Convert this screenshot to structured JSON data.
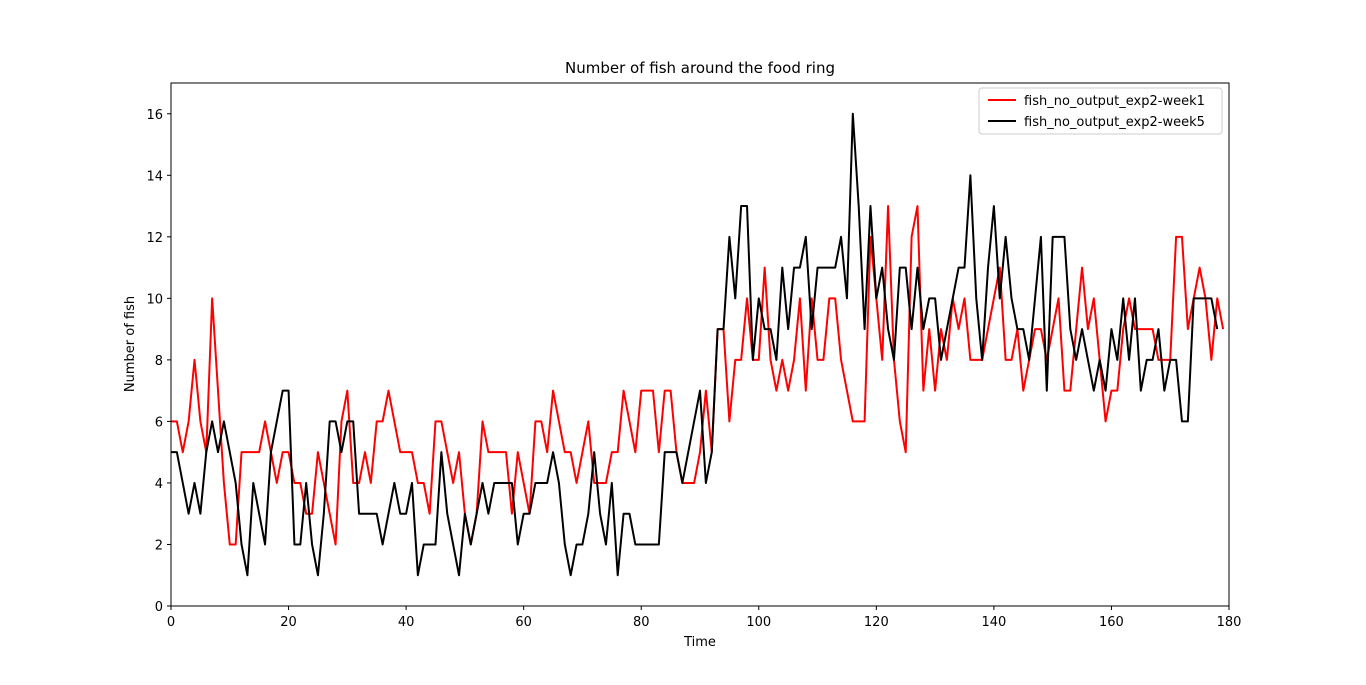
{
  "chart_data": {
    "type": "line",
    "title": "Number of fish around the food ring",
    "xlabel": "Time",
    "ylabel": "Number of fish",
    "xlim": [
      0,
      180
    ],
    "ylim": [
      0,
      17
    ],
    "xticks": [
      0,
      20,
      40,
      60,
      80,
      100,
      120,
      140,
      160,
      180
    ],
    "yticks": [
      0,
      2,
      4,
      6,
      8,
      10,
      12,
      14,
      16
    ],
    "grid": false,
    "legend_position": "top-right",
    "series": [
      {
        "name": "fish_no_output_exp2-week1",
        "color": "#ff0000",
        "values": [
          6,
          6,
          5,
          6,
          8,
          6,
          5,
          10,
          7,
          4,
          2,
          2,
          5,
          5,
          5,
          5,
          6,
          5,
          4,
          5,
          5,
          4,
          4,
          3,
          3,
          5,
          4,
          3,
          2,
          6,
          7,
          4,
          4,
          5,
          4,
          6,
          6,
          7,
          6,
          5,
          5,
          5,
          4,
          4,
          3,
          6,
          6,
          5,
          4,
          5,
          3,
          2,
          3,
          6,
          5,
          5,
          5,
          5,
          3,
          5,
          4,
          3,
          6,
          6,
          5,
          7,
          6,
          5,
          5,
          4,
          5,
          6,
          4,
          4,
          4,
          5,
          5,
          7,
          6,
          5,
          7,
          7,
          7,
          5,
          7,
          7,
          5,
          4,
          4,
          4,
          5,
          7,
          5,
          9,
          9,
          6,
          8,
          8,
          10,
          8,
          8,
          11,
          8,
          7,
          8,
          7,
          8,
          10,
          7,
          10,
          8,
          8,
          10,
          10,
          8,
          7,
          6,
          6,
          6,
          12,
          10,
          8,
          13,
          8,
          6,
          5,
          12,
          13,
          7,
          9,
          7,
          9,
          8,
          10,
          9,
          10,
          8,
          8,
          8,
          9,
          10,
          11,
          8,
          8,
          9,
          7,
          8,
          9,
          9,
          8,
          9,
          10,
          7,
          7,
          9,
          11,
          9,
          10,
          8,
          6,
          7,
          7,
          9,
          10,
          9,
          9,
          9,
          9,
          8,
          8,
          8,
          12,
          12,
          9,
          10,
          11,
          10,
          8,
          10,
          9
        ]
      },
      {
        "name": "fish_no_output_exp2-week5",
        "color": "#000000",
        "values": [
          5,
          5,
          4,
          3,
          4,
          3,
          5,
          6,
          5,
          6,
          5,
          4,
          2,
          1,
          4,
          3,
          2,
          5,
          6,
          7,
          7,
          2,
          2,
          4,
          2,
          1,
          3,
          6,
          6,
          5,
          6,
          6,
          3,
          3,
          3,
          3,
          2,
          3,
          4,
          3,
          3,
          4,
          1,
          2,
          2,
          2,
          5,
          3,
          2,
          1,
          3,
          2,
          3,
          4,
          3,
          4,
          4,
          4,
          4,
          2,
          3,
          3,
          4,
          4,
          4,
          5,
          4,
          2,
          1,
          2,
          2,
          3,
          5,
          3,
          2,
          4,
          1,
          3,
          3,
          2,
          2,
          2,
          2,
          2,
          5,
          5,
          5,
          4,
          5,
          6,
          7,
          4,
          5,
          9,
          9,
          12,
          10,
          13,
          13,
          8,
          10,
          9,
          9,
          8,
          11,
          9,
          11,
          11,
          12,
          9,
          11,
          11,
          11,
          11,
          12,
          10,
          16,
          13,
          9,
          13,
          10,
          11,
          9,
          8,
          11,
          11,
          9,
          11,
          9,
          10,
          10,
          8,
          9,
          10,
          11,
          11,
          14,
          10,
          8,
          11,
          13,
          10,
          12,
          10,
          9,
          9,
          8,
          10,
          12,
          7,
          12,
          12,
          12,
          9,
          8,
          9,
          8,
          7,
          8,
          7,
          9,
          8,
          10,
          8,
          10,
          7,
          8,
          8,
          9,
          7,
          8,
          8,
          6,
          6,
          10,
          10,
          10,
          10,
          9
        ]
      }
    ]
  }
}
